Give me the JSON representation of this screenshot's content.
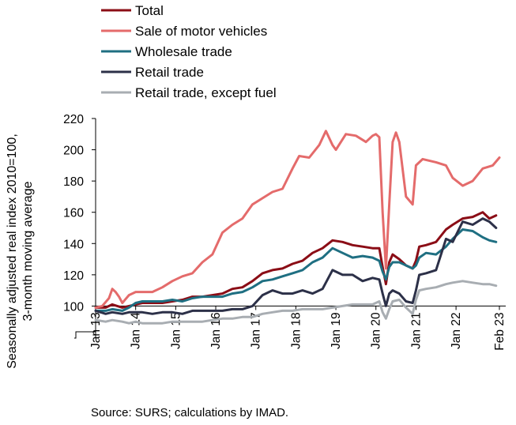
{
  "chart_data": {
    "type": "line",
    "title": "",
    "ylabel": [
      "Seasonally adjusted real index 2010=100,",
      "3-month moving average"
    ],
    "xlabel": "",
    "ylim": [
      80,
      220
    ],
    "yticks": [
      220,
      200,
      180,
      160,
      140,
      120,
      100
    ],
    "xticks": [
      "Jan 13",
      "Jan 14",
      "Jan 15",
      "Jan 16",
      "Jan 17",
      "Jan 18",
      "Jan 19",
      "Jan 20",
      "Jan 21",
      "Jan 22",
      "Feb 23"
    ],
    "reference_line": 100,
    "grid": false,
    "legend_position": "top-left",
    "source": "Source: SURS; calculations by IMAD.",
    "series": [
      {
        "name": "Total",
        "color": "#8b0d16",
        "points": [
          [
            "2013-01",
            99
          ],
          [
            "2013-04",
            99
          ],
          [
            "2013-06",
            101
          ],
          [
            "2013-09",
            99
          ],
          [
            "2013-11",
            100
          ],
          [
            "2014-01",
            101
          ],
          [
            "2014-03",
            102
          ],
          [
            "2014-06",
            102
          ],
          [
            "2014-09",
            102
          ],
          [
            "2014-12",
            103
          ],
          [
            "2015-03",
            104
          ],
          [
            "2015-06",
            106
          ],
          [
            "2015-09",
            106
          ],
          [
            "2015-12",
            107
          ],
          [
            "2016-03",
            108
          ],
          [
            "2016-06",
            111
          ],
          [
            "2016-09",
            112
          ],
          [
            "2016-12",
            116
          ],
          [
            "2017-03",
            121
          ],
          [
            "2017-06",
            123
          ],
          [
            "2017-09",
            124
          ],
          [
            "2017-12",
            127
          ],
          [
            "2018-03",
            129
          ],
          [
            "2018-06",
            134
          ],
          [
            "2018-09",
            137
          ],
          [
            "2018-12",
            142
          ],
          [
            "2019-03",
            141
          ],
          [
            "2019-06",
            139
          ],
          [
            "2019-09",
            138
          ],
          [
            "2019-12",
            137
          ],
          [
            "2020-02",
            137
          ],
          [
            "2020-03",
            125
          ],
          [
            "2020-04",
            114
          ],
          [
            "2020-05",
            128
          ],
          [
            "2020-06",
            133
          ],
          [
            "2020-08",
            130
          ],
          [
            "2020-10",
            126
          ],
          [
            "2020-12",
            124
          ],
          [
            "2021-01",
            129
          ],
          [
            "2021-02",
            138
          ],
          [
            "2021-04",
            139
          ],
          [
            "2021-07",
            141
          ],
          [
            "2021-10",
            149
          ],
          [
            "2021-12",
            152
          ],
          [
            "2022-03",
            156
          ],
          [
            "2022-06",
            157
          ],
          [
            "2022-09",
            160
          ],
          [
            "2022-11",
            156
          ],
          [
            "2023-01",
            158
          ]
        ]
      },
      {
        "name": "Sale of motor vehicles",
        "color": "#e46b6b",
        "points": [
          [
            "2013-01",
            99
          ],
          [
            "2013-03",
            100
          ],
          [
            "2013-05",
            105
          ],
          [
            "2013-06",
            111
          ],
          [
            "2013-07",
            109
          ],
          [
            "2013-08",
            106
          ],
          [
            "2013-09",
            102
          ],
          [
            "2013-11",
            107
          ],
          [
            "2014-01",
            109
          ],
          [
            "2014-03",
            109
          ],
          [
            "2014-06",
            109
          ],
          [
            "2014-09",
            112
          ],
          [
            "2014-12",
            116
          ],
          [
            "2015-03",
            119
          ],
          [
            "2015-06",
            121
          ],
          [
            "2015-09",
            128
          ],
          [
            "2015-12",
            133
          ],
          [
            "2016-03",
            147
          ],
          [
            "2016-06",
            152
          ],
          [
            "2016-09",
            156
          ],
          [
            "2016-12",
            165
          ],
          [
            "2017-03",
            169
          ],
          [
            "2017-06",
            173
          ],
          [
            "2017-09",
            175
          ],
          [
            "2017-12",
            188
          ],
          [
            "2018-02",
            196
          ],
          [
            "2018-05",
            195
          ],
          [
            "2018-08",
            203
          ],
          [
            "2018-10",
            212
          ],
          [
            "2018-12",
            203
          ],
          [
            "2019-01",
            200
          ],
          [
            "2019-04",
            210
          ],
          [
            "2019-07",
            209
          ],
          [
            "2019-10",
            205
          ],
          [
            "2019-12",
            209
          ],
          [
            "2020-01",
            210
          ],
          [
            "2020-02",
            208
          ],
          [
            "2020-03",
            160
          ],
          [
            "2020-04",
            124
          ],
          [
            "2020-05",
            165
          ],
          [
            "2020-06",
            205
          ],
          [
            "2020-07",
            211
          ],
          [
            "2020-08",
            205
          ],
          [
            "2020-10",
            170
          ],
          [
            "2020-12",
            165
          ],
          [
            "2021-01",
            190
          ],
          [
            "2021-03",
            194
          ],
          [
            "2021-05",
            193
          ],
          [
            "2021-07",
            192
          ],
          [
            "2021-10",
            190
          ],
          [
            "2021-12",
            182
          ],
          [
            "2022-03",
            177
          ],
          [
            "2022-06",
            180
          ],
          [
            "2022-09",
            188
          ],
          [
            "2022-12",
            190
          ],
          [
            "2023-02",
            195
          ]
        ]
      },
      {
        "name": "Wholesale trade",
        "color": "#1f6f82",
        "points": [
          [
            "2013-01",
            97
          ],
          [
            "2013-04",
            97
          ],
          [
            "2013-06",
            98
          ],
          [
            "2013-09",
            97
          ],
          [
            "2013-11",
            99
          ],
          [
            "2014-01",
            102
          ],
          [
            "2014-03",
            103
          ],
          [
            "2014-06",
            103
          ],
          [
            "2014-09",
            103
          ],
          [
            "2014-12",
            104
          ],
          [
            "2015-03",
            103
          ],
          [
            "2015-06",
            105
          ],
          [
            "2015-09",
            106
          ],
          [
            "2015-12",
            106
          ],
          [
            "2016-03",
            106
          ],
          [
            "2016-06",
            108
          ],
          [
            "2016-09",
            109
          ],
          [
            "2016-12",
            112
          ],
          [
            "2017-03",
            116
          ],
          [
            "2017-06",
            117
          ],
          [
            "2017-09",
            119
          ],
          [
            "2017-12",
            121
          ],
          [
            "2018-03",
            123
          ],
          [
            "2018-06",
            128
          ],
          [
            "2018-09",
            131
          ],
          [
            "2018-12",
            137
          ],
          [
            "2019-03",
            134
          ],
          [
            "2019-06",
            131
          ],
          [
            "2019-09",
            132
          ],
          [
            "2019-12",
            131
          ],
          [
            "2020-02",
            129
          ],
          [
            "2020-03",
            122
          ],
          [
            "2020-04",
            117
          ],
          [
            "2020-05",
            125
          ],
          [
            "2020-06",
            128
          ],
          [
            "2020-08",
            128
          ],
          [
            "2020-10",
            126
          ],
          [
            "2020-12",
            124
          ],
          [
            "2021-01",
            126
          ],
          [
            "2021-02",
            131
          ],
          [
            "2021-04",
            134
          ],
          [
            "2021-07",
            133
          ],
          [
            "2021-10",
            138
          ],
          [
            "2021-12",
            143
          ],
          [
            "2022-03",
            149
          ],
          [
            "2022-06",
            148
          ],
          [
            "2022-09",
            144
          ],
          [
            "2022-11",
            142
          ],
          [
            "2023-01",
            141
          ]
        ]
      },
      {
        "name": "Retail trade",
        "color": "#2c3048",
        "points": [
          [
            "2013-01",
            97
          ],
          [
            "2013-04",
            95
          ],
          [
            "2013-06",
            96
          ],
          [
            "2013-09",
            95
          ],
          [
            "2013-11",
            96
          ],
          [
            "2014-01",
            96
          ],
          [
            "2014-03",
            96
          ],
          [
            "2014-06",
            95
          ],
          [
            "2014-09",
            96
          ],
          [
            "2014-12",
            96
          ],
          [
            "2015-03",
            95
          ],
          [
            "2015-06",
            97
          ],
          [
            "2015-09",
            97
          ],
          [
            "2015-12",
            97
          ],
          [
            "2016-03",
            97
          ],
          [
            "2016-06",
            98
          ],
          [
            "2016-09",
            98
          ],
          [
            "2016-12",
            100
          ],
          [
            "2017-03",
            107
          ],
          [
            "2017-06",
            110
          ],
          [
            "2017-09",
            108
          ],
          [
            "2017-12",
            108
          ],
          [
            "2018-03",
            110
          ],
          [
            "2018-06",
            108
          ],
          [
            "2018-09",
            111
          ],
          [
            "2018-12",
            123
          ],
          [
            "2019-03",
            120
          ],
          [
            "2019-06",
            120
          ],
          [
            "2019-09",
            116
          ],
          [
            "2019-12",
            118
          ],
          [
            "2020-02",
            117
          ],
          [
            "2020-03",
            108
          ],
          [
            "2020-04",
            100
          ],
          [
            "2020-05",
            108
          ],
          [
            "2020-06",
            110
          ],
          [
            "2020-08",
            108
          ],
          [
            "2020-10",
            103
          ],
          [
            "2020-12",
            102
          ],
          [
            "2021-01",
            110
          ],
          [
            "2021-02",
            120
          ],
          [
            "2021-04",
            121
          ],
          [
            "2021-07",
            123
          ],
          [
            "2021-10",
            143
          ],
          [
            "2021-12",
            141
          ],
          [
            "2022-03",
            154
          ],
          [
            "2022-06",
            152
          ],
          [
            "2022-09",
            156
          ],
          [
            "2022-11",
            154
          ],
          [
            "2023-01",
            150
          ]
        ]
      },
      {
        "name": "Retail trade, except fuel",
        "color": "#a8adb2",
        "points": [
          [
            "2013-01",
            91
          ],
          [
            "2013-04",
            90
          ],
          [
            "2013-06",
            91
          ],
          [
            "2013-09",
            90
          ],
          [
            "2013-11",
            89
          ],
          [
            "2014-01",
            90
          ],
          [
            "2014-03",
            89
          ],
          [
            "2014-06",
            89
          ],
          [
            "2014-09",
            89
          ],
          [
            "2014-12",
            90
          ],
          [
            "2015-03",
            90
          ],
          [
            "2015-06",
            90
          ],
          [
            "2015-09",
            90
          ],
          [
            "2015-12",
            91
          ],
          [
            "2016-03",
            92
          ],
          [
            "2016-06",
            92
          ],
          [
            "2016-09",
            93
          ],
          [
            "2016-12",
            93
          ],
          [
            "2017-03",
            95
          ],
          [
            "2017-06",
            96
          ],
          [
            "2017-09",
            97
          ],
          [
            "2017-12",
            97
          ],
          [
            "2018-03",
            98
          ],
          [
            "2018-06",
            98
          ],
          [
            "2018-09",
            98
          ],
          [
            "2018-12",
            99
          ],
          [
            "2019-03",
            100
          ],
          [
            "2019-06",
            101
          ],
          [
            "2019-09",
            101
          ],
          [
            "2019-12",
            101
          ],
          [
            "2020-02",
            103
          ],
          [
            "2020-03",
            96
          ],
          [
            "2020-04",
            92
          ],
          [
            "2020-05",
            98
          ],
          [
            "2020-06",
            103
          ],
          [
            "2020-08",
            104
          ],
          [
            "2020-10",
            99
          ],
          [
            "2020-12",
            95
          ],
          [
            "2021-01",
            104
          ],
          [
            "2021-02",
            110
          ],
          [
            "2021-04",
            111
          ],
          [
            "2021-07",
            112
          ],
          [
            "2021-10",
            114
          ],
          [
            "2021-12",
            115
          ],
          [
            "2022-03",
            116
          ],
          [
            "2022-06",
            115
          ],
          [
            "2022-09",
            114
          ],
          [
            "2022-11",
            114
          ],
          [
            "2023-01",
            113
          ]
        ]
      }
    ]
  }
}
